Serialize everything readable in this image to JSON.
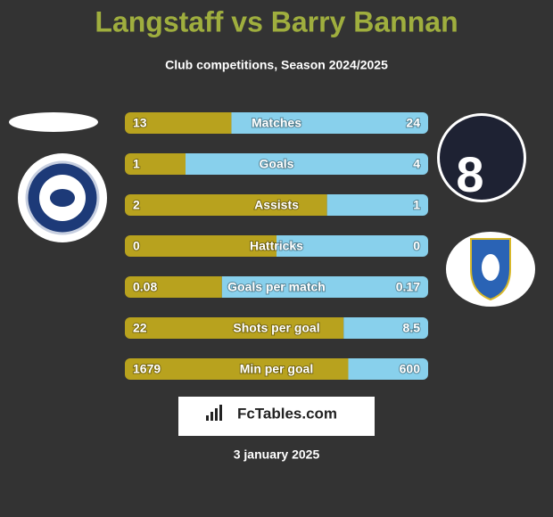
{
  "chart_data": {
    "type": "comparison-bar",
    "title": "Langstaff vs Barry Bannan",
    "subtitle": "Club competitions, Season 2024/2025",
    "left_color": "#b8a21e",
    "right_color": "#88d0ec",
    "rows": [
      {
        "label": "Matches",
        "left": 13,
        "right": 24
      },
      {
        "label": "Goals",
        "left": 1,
        "right": 4
      },
      {
        "label": "Assists",
        "left": 2,
        "right": 1
      },
      {
        "label": "Hattricks",
        "left": 0,
        "right": 0
      },
      {
        "label": "Goals per match",
        "left": 0.08,
        "right": 0.17
      },
      {
        "label": "Shots per goal",
        "left": 22,
        "right": 8.5
      },
      {
        "label": "Min per goal",
        "left": 1679,
        "right": 600
      }
    ],
    "brand": "FcTables.com",
    "date": "3 january 2025"
  }
}
